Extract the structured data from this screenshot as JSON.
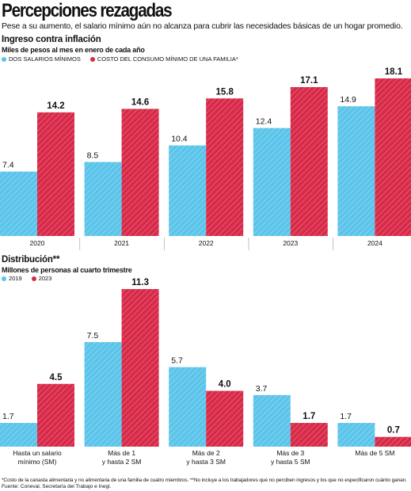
{
  "title": "Percepciones rezagadas",
  "subtitle": "Pese a su aumento, el salario mínimo aún no alcanza para cubrir las necesidades básicas de un hogar promedio.",
  "colors": {
    "blue": "#5bc4ea",
    "red": "#d72a49"
  },
  "chart_data": [
    {
      "type": "bar",
      "title": "Ingreso contra inflación",
      "subtitle": "Miles de pesos al mes en enero de cada año",
      "categories": [
        "2020",
        "2021",
        "2022",
        "2023",
        "2024"
      ],
      "series": [
        {
          "name": "DOS SALARIOS MÍNIMOS",
          "values": [
            7.4,
            8.5,
            10.4,
            12.4,
            14.9
          ],
          "color": "#5bc4ea"
        },
        {
          "name": "COSTO DEL CONSUMO MÍNIMO DE UNA FAMILIA*",
          "values": [
            14.2,
            14.6,
            15.8,
            17.1,
            18.1
          ],
          "color": "#d72a49"
        }
      ],
      "ylim": [
        0,
        18.1
      ],
      "grid": false
    },
    {
      "type": "bar",
      "title": "Distribución**",
      "subtitle": "Millones de personas al cuarto trimestre",
      "categories": [
        [
          "Hasta un salario",
          "mínimo (SM)"
        ],
        [
          "Más de 1",
          "y hasta 2 SM"
        ],
        [
          "Más de 2",
          "y hasta 3 SM"
        ],
        [
          "Más de 3",
          "y hasta 5 SM"
        ],
        [
          "Más de 5 SM"
        ]
      ],
      "series": [
        {
          "name": "2019",
          "values": [
            1.7,
            7.5,
            5.7,
            3.7,
            1.7
          ],
          "color": "#5bc4ea"
        },
        {
          "name": "2023",
          "values": [
            4.5,
            11.3,
            4.0,
            1.7,
            0.7
          ],
          "color": "#d72a49"
        }
      ],
      "ylim": [
        0,
        11.3
      ],
      "grid": false
    }
  ],
  "footnote": "*Costo de la canasta alimentaria y no alimentaria de una familia de cuatro miembros. **No incluye a los trabajadores que no perciben ingresos y los que no especificaron cuánto ganan.",
  "source": "Fuente: Coneval, Secretaría del Trabajo e Inegi."
}
